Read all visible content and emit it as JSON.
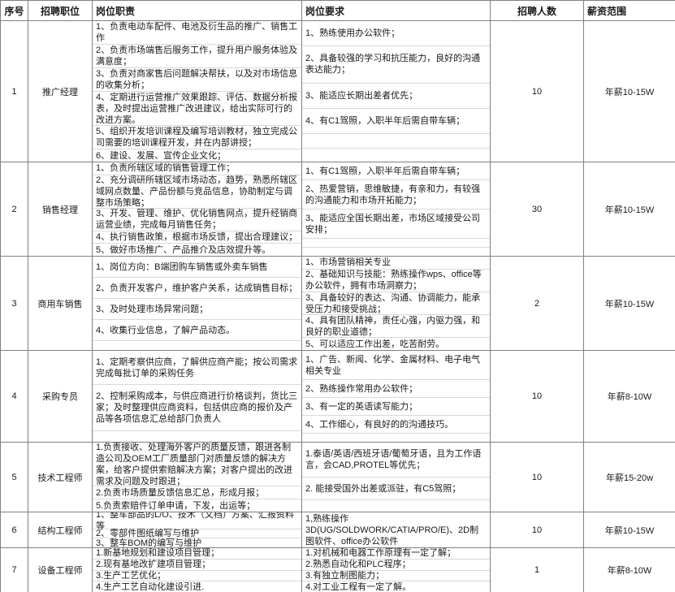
{
  "table": {
    "headers": [
      "序号",
      "招聘职位",
      "岗位职责",
      "岗位要求",
      "招聘人数",
      "薪资范围"
    ],
    "rows": [
      {
        "no": "1",
        "position": "推广经理",
        "duties": [
          "1、负责电动车配件、电池及衍生品的推广、销售工作",
          "2、负责市场端售后服务工作，提升用户服务体验及满意度；",
          "3、负责对商家售后问题解决帮扶，以及对市场信息的收集分析；",
          "4、定期进行运营推广效果跟踪、评估、数据分析报表，及时提出运营推广改进建议，给出实际可行的改进方案。",
          "5、组织开发培训课程及编写培训教材，独立完成公司需要的培训课程开发，并在内部讲授；",
          "6、建设、发展、宣传企业文化；"
        ],
        "requirements": [
          "1、熟练使用办公软件；",
          "2、具备较强的学习和抗压能力，良好的沟通表达能力；",
          "3、能适应长期出差者优先；",
          "4、有C1驾照，入职半年后需自带车辆；",
          "",
          ""
        ],
        "headcount": "10",
        "salary": "年薪10-15W"
      },
      {
        "no": "2",
        "position": "销售经理",
        "duties": [
          "1、负责所辖区域的销售管理工作；",
          "2、充分调研所辖区域市场动态，趋势，熟悉所辖区域网点数量、产品份额与竞品信息，协助制定与调整市场策略；",
          "3、开发、管理、维护、优化销售网点，提升经销商运营业绩，完成每月销售任务；",
          "4、执行销售政策，根据市场反馈，提出合理建议；",
          "5、做好市场推广、产品推介及店效提升等。"
        ],
        "requirements": [
          "1、有C1驾照，入职半年后需自带车辆；",
          "2、热爱营销，思维敏捷，有亲和力，有较强的沟通能力和市场开拓能力；",
          "3、能适应全国长期出差，市场区域接受公司安排；",
          "",
          ""
        ],
        "headcount": "30",
        "salary": "年薪10-15W"
      },
      {
        "no": "3",
        "position": "商用车销售",
        "duties": [
          "1、岗位方向：B端团购车销售或外卖车销售",
          "2、负责开发客户，维护客户关系，达成销售目标；",
          "3、及时处理市场异常问题；",
          "4、收集行业信息，了解产品动态。",
          ""
        ],
        "requirements": [
          "1、市场营销相关专业",
          "2、基础知识与技能：熟练操作wps、office等办公软件，拥有市场洞察力；",
          "3、具备较好的表达、沟通、协调能力，能承受压力和接受挑战；",
          "4、具有团队精神，责任心强，内驱力强，和良好的职业道德；",
          "5、可以适应工作出差，吃苦耐劳。"
        ],
        "headcount": "2",
        "salary": "年薪10-15W"
      },
      {
        "no": "4",
        "position": "采购专员",
        "duties": [
          "1、定期考察供应商，了解供应商产能；按公司需求完成每批订单的采购任务",
          "2、控制采购成本，与供应商进行价格谈判，货比三家；及时整理供应商资料，包括供应商的报价及产品等各项信息汇总给部门负责人",
          ""
        ],
        "requirements": [
          "1、广告、新闻、化学、金属材料、电子电气相关专业",
          "2、熟练操作常用办公软件；",
          "3、有一定的英语读写能力；",
          "4、工作细心，有良好的的沟通技巧。",
          ""
        ],
        "headcount": "10",
        "salary": "年薪8-10W"
      },
      {
        "no": "5",
        "position": "技术工程师",
        "duties": [
          "1.负责接收、处理海外客户的质量反馈，跟进各制造公司及OEM工厂质量部门对质量反馈的解决方案，给客户提供索赔解决方案；对客户提出的改进需求及问题及时跟进；",
          "2.负责市场质量反馈信息汇总，形成月报；",
          "5.负责索赔件订单申请，下发，出运等；"
        ],
        "requirements": [
          "1.泰语/英语/西班牙语/葡萄牙语，且为工作语言，会CAD,PROTEL等优先；",
          "2. 能接受国外出差或派驻，有C5驾照；",
          ""
        ],
        "headcount": "10",
        "salary": "年薪15-20w"
      },
      {
        "no": "6",
        "position": "结构工程师",
        "duties": [
          "1、整车部品的L/O、技术（文档）方案、汇报资料等",
          "2、零部件图纸编写与维护",
          "3、整车BOM的编写与维护"
        ],
        "requirements": [
          "1,熟练操作3D(UG/SOLDWORK/CATIA/PRO/E)、2D制图软件、office办公软件"
        ],
        "headcount": "10",
        "salary": "年薪10-15W"
      },
      {
        "no": "7",
        "position": "设备工程师",
        "duties": [
          "1.新基地规划和建设项目管理；",
          "2.现有基地改扩建项目管理；",
          "3.生产工艺优化；",
          "4.生产工艺自动化建设引进."
        ],
        "requirements": [
          "1.对机械和电器工作原理有一定了解；",
          "2.熟悉自动化和PLC程序；",
          "3.有独立制图能力；",
          "4.对工业工程有一定了解。"
        ],
        "headcount": "1",
        "salary": "年薪8-10W"
      }
    ]
  },
  "colors": {
    "grid_border": "#808080",
    "item_divider": "#d9d9d9",
    "text": "#1a1a1a",
    "background": "#ffffff"
  }
}
